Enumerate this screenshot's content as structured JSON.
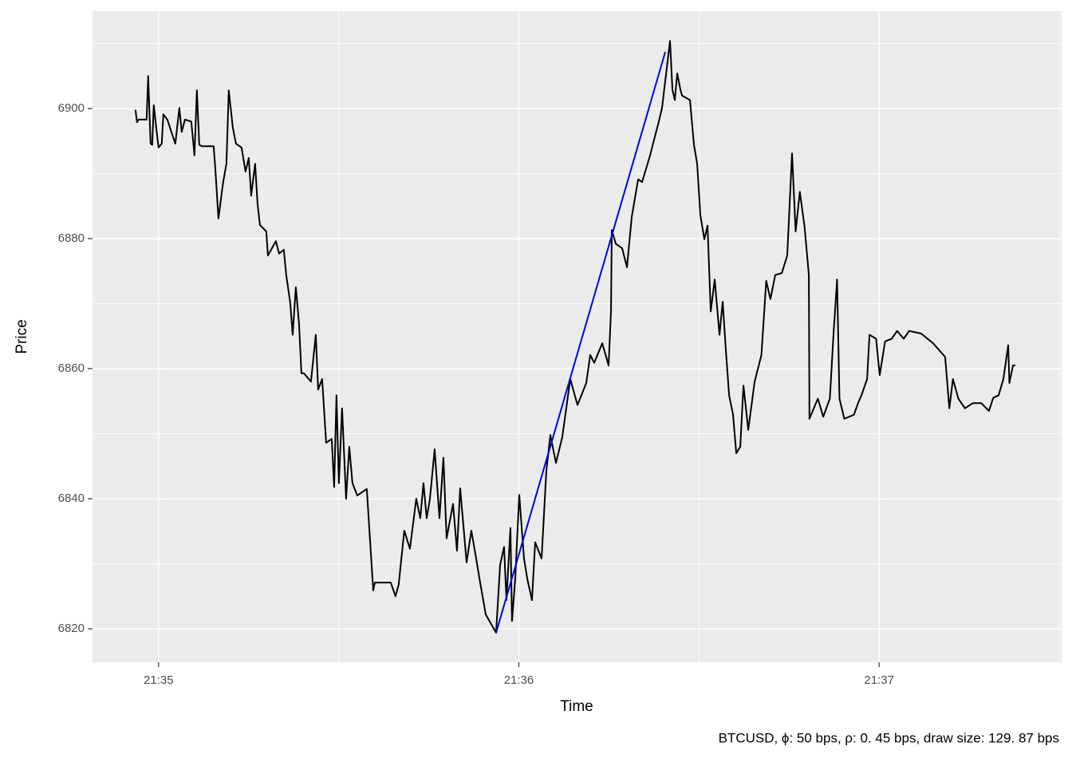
{
  "chart_data": {
    "type": "line",
    "caption": "BTCUSD, ϕ: 50 bps, ρ: 0. 45 bps, draw size: 129. 87 bps",
    "x_label": "Time",
    "y_label": "Price",
    "xlim": [
      -11.0,
      150.4
    ],
    "xticks": [
      {
        "value": 0,
        "label": "21:35"
      },
      {
        "value": 60,
        "label": "21:36"
      },
      {
        "value": 120,
        "label": "21:37"
      }
    ],
    "ylim": [
      6814.85,
      6914.97
    ],
    "yticks": [
      6820,
      6840,
      6860,
      6880,
      6900
    ],
    "grid": true,
    "series": [
      {
        "color": "#000000",
        "x": [
          -3.85,
          -3.59,
          -3.32,
          -1.99,
          -1.73,
          -1.33,
          -1.06,
          -0.8,
          -0.4,
          0,
          0.53,
          0.8,
          1.46,
          2.13,
          2.79,
          3.46,
          3.85,
          4.39,
          5.45,
          5.98,
          6.38,
          6.78,
          7.31,
          9.17,
          9.44,
          9.97,
          10.76,
          11.3,
          11.69,
          12.36,
          12.89,
          13.82,
          14.48,
          15.02,
          15.42,
          16.08,
          16.48,
          16.88,
          17.94,
          18.21,
          19.54,
          20.07,
          20.86,
          21.26,
          21.93,
          22.33,
          22.86,
          23.39,
          23.79,
          24.19,
          25.38,
          26.18,
          26.58,
          27.24,
          27.91,
          28.84,
          29.24,
          29.63,
          30.03,
          30.56,
          31.23,
          31.76,
          32.29,
          33.09,
          34.68,
          35.75,
          36.01,
          38.67,
          39.46,
          39.99,
          40.92,
          41.86,
          42.92,
          43.59,
          44.12,
          44.65,
          45.18,
          45.98,
          46.78,
          47.44,
          47.97,
          49.04,
          49.7,
          50.23,
          51.3,
          52.09,
          52.89,
          53.56,
          54.49,
          56.21,
          56.88,
          57.54,
          57.94,
          58.6,
          58.86,
          59.4,
          60.07,
          60.86,
          61.4,
          62.19,
          62.72,
          63.79,
          64.58,
          65.25,
          66.18,
          67.24,
          68.57,
          69.77,
          71.23,
          71.89,
          72.56,
          73.89,
          74.95,
          75.35,
          75.48,
          76.15,
          77.21,
          78.01,
          78.8,
          79.87,
          80.53,
          81.86,
          82.52,
          83.32,
          83.85,
          84.65,
          85.18,
          85.58,
          85.98,
          86.38,
          86.91,
          87.18,
          88.5,
          89.17,
          89.7,
          90.23,
          90.9,
          91.43,
          91.96,
          92.62,
          93.42,
          93.95,
          94.49,
          95.02,
          95.68,
          96.21,
          96.88,
          97.41,
          98.21,
          99.27,
          100.4,
          101.2,
          101.9,
          102.7,
          103.8,
          104.7,
          105.5,
          106.1,
          106.8,
          107.6,
          108.3,
          108.4,
          109.8,
          110.7,
          111.8,
          112.4,
          113.0,
          113.4,
          114.2,
          115.8,
          116.5,
          117.1,
          118.0,
          118.4,
          119.5,
          120.1,
          121.0,
          122.1,
          123.0,
          124.1,
          125.0,
          127.0,
          129.0,
          131.0,
          131.7,
          132.3,
          133.2,
          134.3,
          135.6,
          137.0,
          138.3,
          139.0,
          139.9,
          140.7,
          141.5,
          141.7,
          142.3,
          142.7
        ],
        "values": [
          6899.8,
          6897.9,
          6898.3,
          6898.3,
          6905.0,
          6894.6,
          6894.4,
          6900.5,
          6897.1,
          6894.0,
          6894.6,
          6899.1,
          6898.3,
          6896.4,
          6894.6,
          6900.1,
          6896.4,
          6898.3,
          6898.0,
          6892.8,
          6902.8,
          6894.4,
          6894.2,
          6894.2,
          6890.9,
          6883.1,
          6888.7,
          6891.5,
          6902.8,
          6897.1,
          6894.6,
          6894.0,
          6890.3,
          6892.4,
          6886.6,
          6891.5,
          6885.4,
          6882.1,
          6881.1,
          6877.4,
          6879.6,
          6877.7,
          6878.3,
          6874.4,
          6870.1,
          6865.2,
          6872.5,
          6867.0,
          6859.3,
          6859.3,
          6858.0,
          6865.2,
          6856.8,
          6858.4,
          6848.6,
          6849.2,
          6841.8,
          6855.9,
          6842.4,
          6853.9,
          6840.0,
          6848.0,
          6842.4,
          6840.5,
          6841.5,
          6825.9,
          6827.1,
          6827.1,
          6825.0,
          6826.8,
          6835.1,
          6832.3,
          6840.0,
          6837.0,
          6842.4,
          6837.0,
          6839.9,
          6847.6,
          6837.0,
          6846.3,
          6833.9,
          6839.2,
          6832.0,
          6841.6,
          6830.2,
          6835.1,
          6830.8,
          6827.1,
          6822.2,
          6819.4,
          6829.8,
          6832.6,
          6824.4,
          6835.5,
          6821.2,
          6827.7,
          6840.6,
          6830.8,
          6827.7,
          6824.4,
          6833.3,
          6830.8,
          6844.3,
          6849.8,
          6845.5,
          6849.5,
          6858.4,
          6854.4,
          6857.8,
          6862.1,
          6860.9,
          6863.9,
          6860.5,
          6868.8,
          6881.3,
          6879.2,
          6878.5,
          6875.6,
          6883.3,
          6889.1,
          6888.7,
          6892.8,
          6895.2,
          6898.0,
          6900.1,
          6906.3,
          6910.4,
          6902.9,
          6901.3,
          6905.4,
          6902.9,
          6902.0,
          6901.3,
          6894.4,
          6891.5,
          6883.6,
          6879.9,
          6882.0,
          6868.8,
          6873.7,
          6865.2,
          6870.3,
          6862.7,
          6855.9,
          6852.9,
          6847.0,
          6848.0,
          6857.4,
          6850.6,
          6858.0,
          6862.1,
          6873.5,
          6870.7,
          6874.4,
          6874.7,
          6877.4,
          6893.1,
          6881.1,
          6887.2,
          6881.7,
          6874.4,
          6852.3,
          6855.4,
          6852.6,
          6855.4,
          6865.2,
          6873.7,
          6855.4,
          6852.3,
          6852.9,
          6854.7,
          6856.0,
          6858.4,
          6865.2,
          6864.6,
          6859.0,
          6864.2,
          6864.6,
          6865.8,
          6864.6,
          6865.8,
          6865.4,
          6863.9,
          6861.8,
          6853.9,
          6858.4,
          6855.4,
          6853.9,
          6854.7,
          6854.7,
          6853.5,
          6855.5,
          6855.9,
          6858.4,
          6863.6,
          6857.8,
          6860.5,
          6860.5
        ]
      },
      {
        "color": "#0000ee",
        "x": [
          56.21,
          84.39
        ],
        "values": [
          6819.4,
          6908.7
        ]
      }
    ]
  }
}
